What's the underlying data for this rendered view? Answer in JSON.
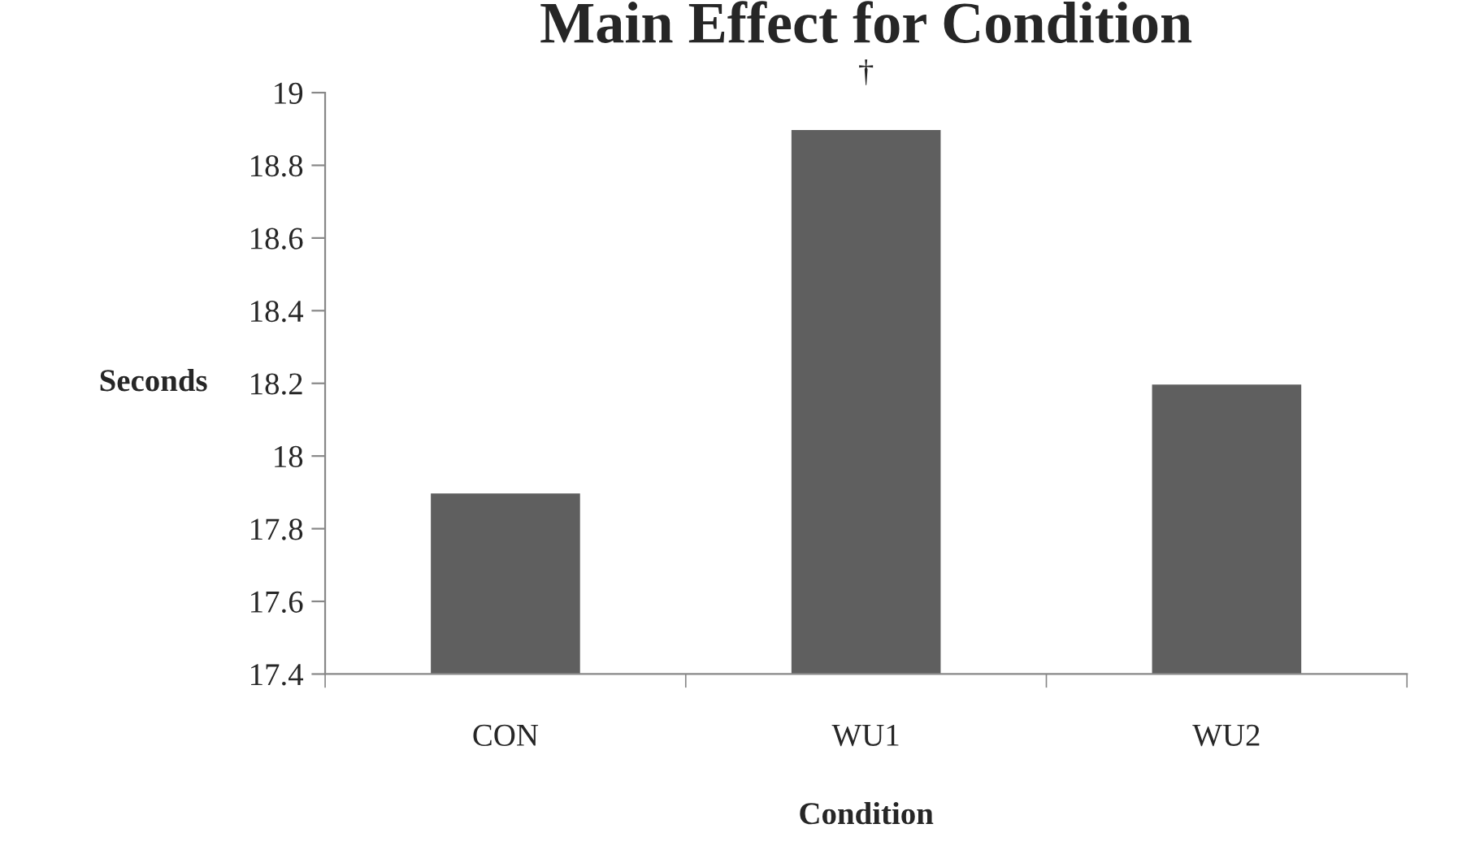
{
  "chart_data": {
    "type": "bar",
    "title": "Main Effect for Condition",
    "xlabel": "Condition",
    "ylabel": "Seconds",
    "categories": [
      "CON",
      "WU1",
      "WU2"
    ],
    "values": [
      17.9,
      18.9,
      18.2
    ],
    "color": "#5f5f5f",
    "ylim": [
      17.4,
      19
    ],
    "yticks": [
      17.4,
      17.6,
      17.8,
      18,
      18.2,
      18.4,
      18.6,
      18.8,
      19
    ],
    "annotations": [
      "†"
    ],
    "grid": false,
    "legend": false
  }
}
